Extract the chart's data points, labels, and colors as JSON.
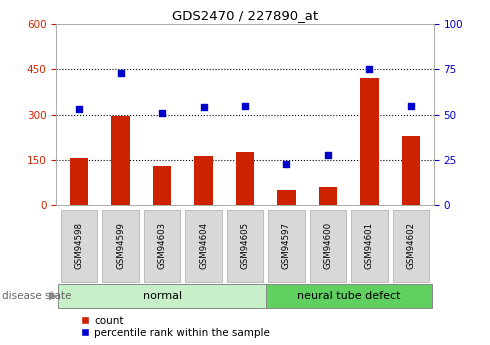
{
  "title": "GDS2470 / 227890_at",
  "samples": [
    "GSM94598",
    "GSM94599",
    "GSM94603",
    "GSM94604",
    "GSM94605",
    "GSM94597",
    "GSM94600",
    "GSM94601",
    "GSM94602"
  ],
  "counts": [
    155,
    297,
    130,
    163,
    175,
    50,
    60,
    420,
    230
  ],
  "percentiles": [
    53,
    73,
    51,
    54,
    55,
    23,
    28,
    75,
    55
  ],
  "groups": [
    {
      "label": "normal",
      "start": 0,
      "end": 5,
      "color": "#c8f0c8"
    },
    {
      "label": "neural tube defect",
      "start": 5,
      "end": 9,
      "color": "#60d060"
    }
  ],
  "bar_color": "#cc2200",
  "dot_color": "#0000cc",
  "left_tick_color": "#cc2200",
  "right_tick_color": "#0000cc",
  "left_ylim": [
    0,
    600
  ],
  "right_ylim": [
    0,
    100
  ],
  "left_yticks": [
    0,
    150,
    300,
    450,
    600
  ],
  "right_yticks": [
    0,
    25,
    50,
    75,
    100
  ],
  "grid_yticks": [
    150,
    300,
    450
  ],
  "legend_labels": [
    "count",
    "percentile rank within the sample"
  ],
  "disease_state_label": "disease state",
  "background_color": "#ffffff",
  "plot_bg_color": "#ffffff",
  "tick_box_color": "#d8d8d8",
  "tick_box_edge": "#aaaaaa",
  "spine_color": "#aaaaaa"
}
